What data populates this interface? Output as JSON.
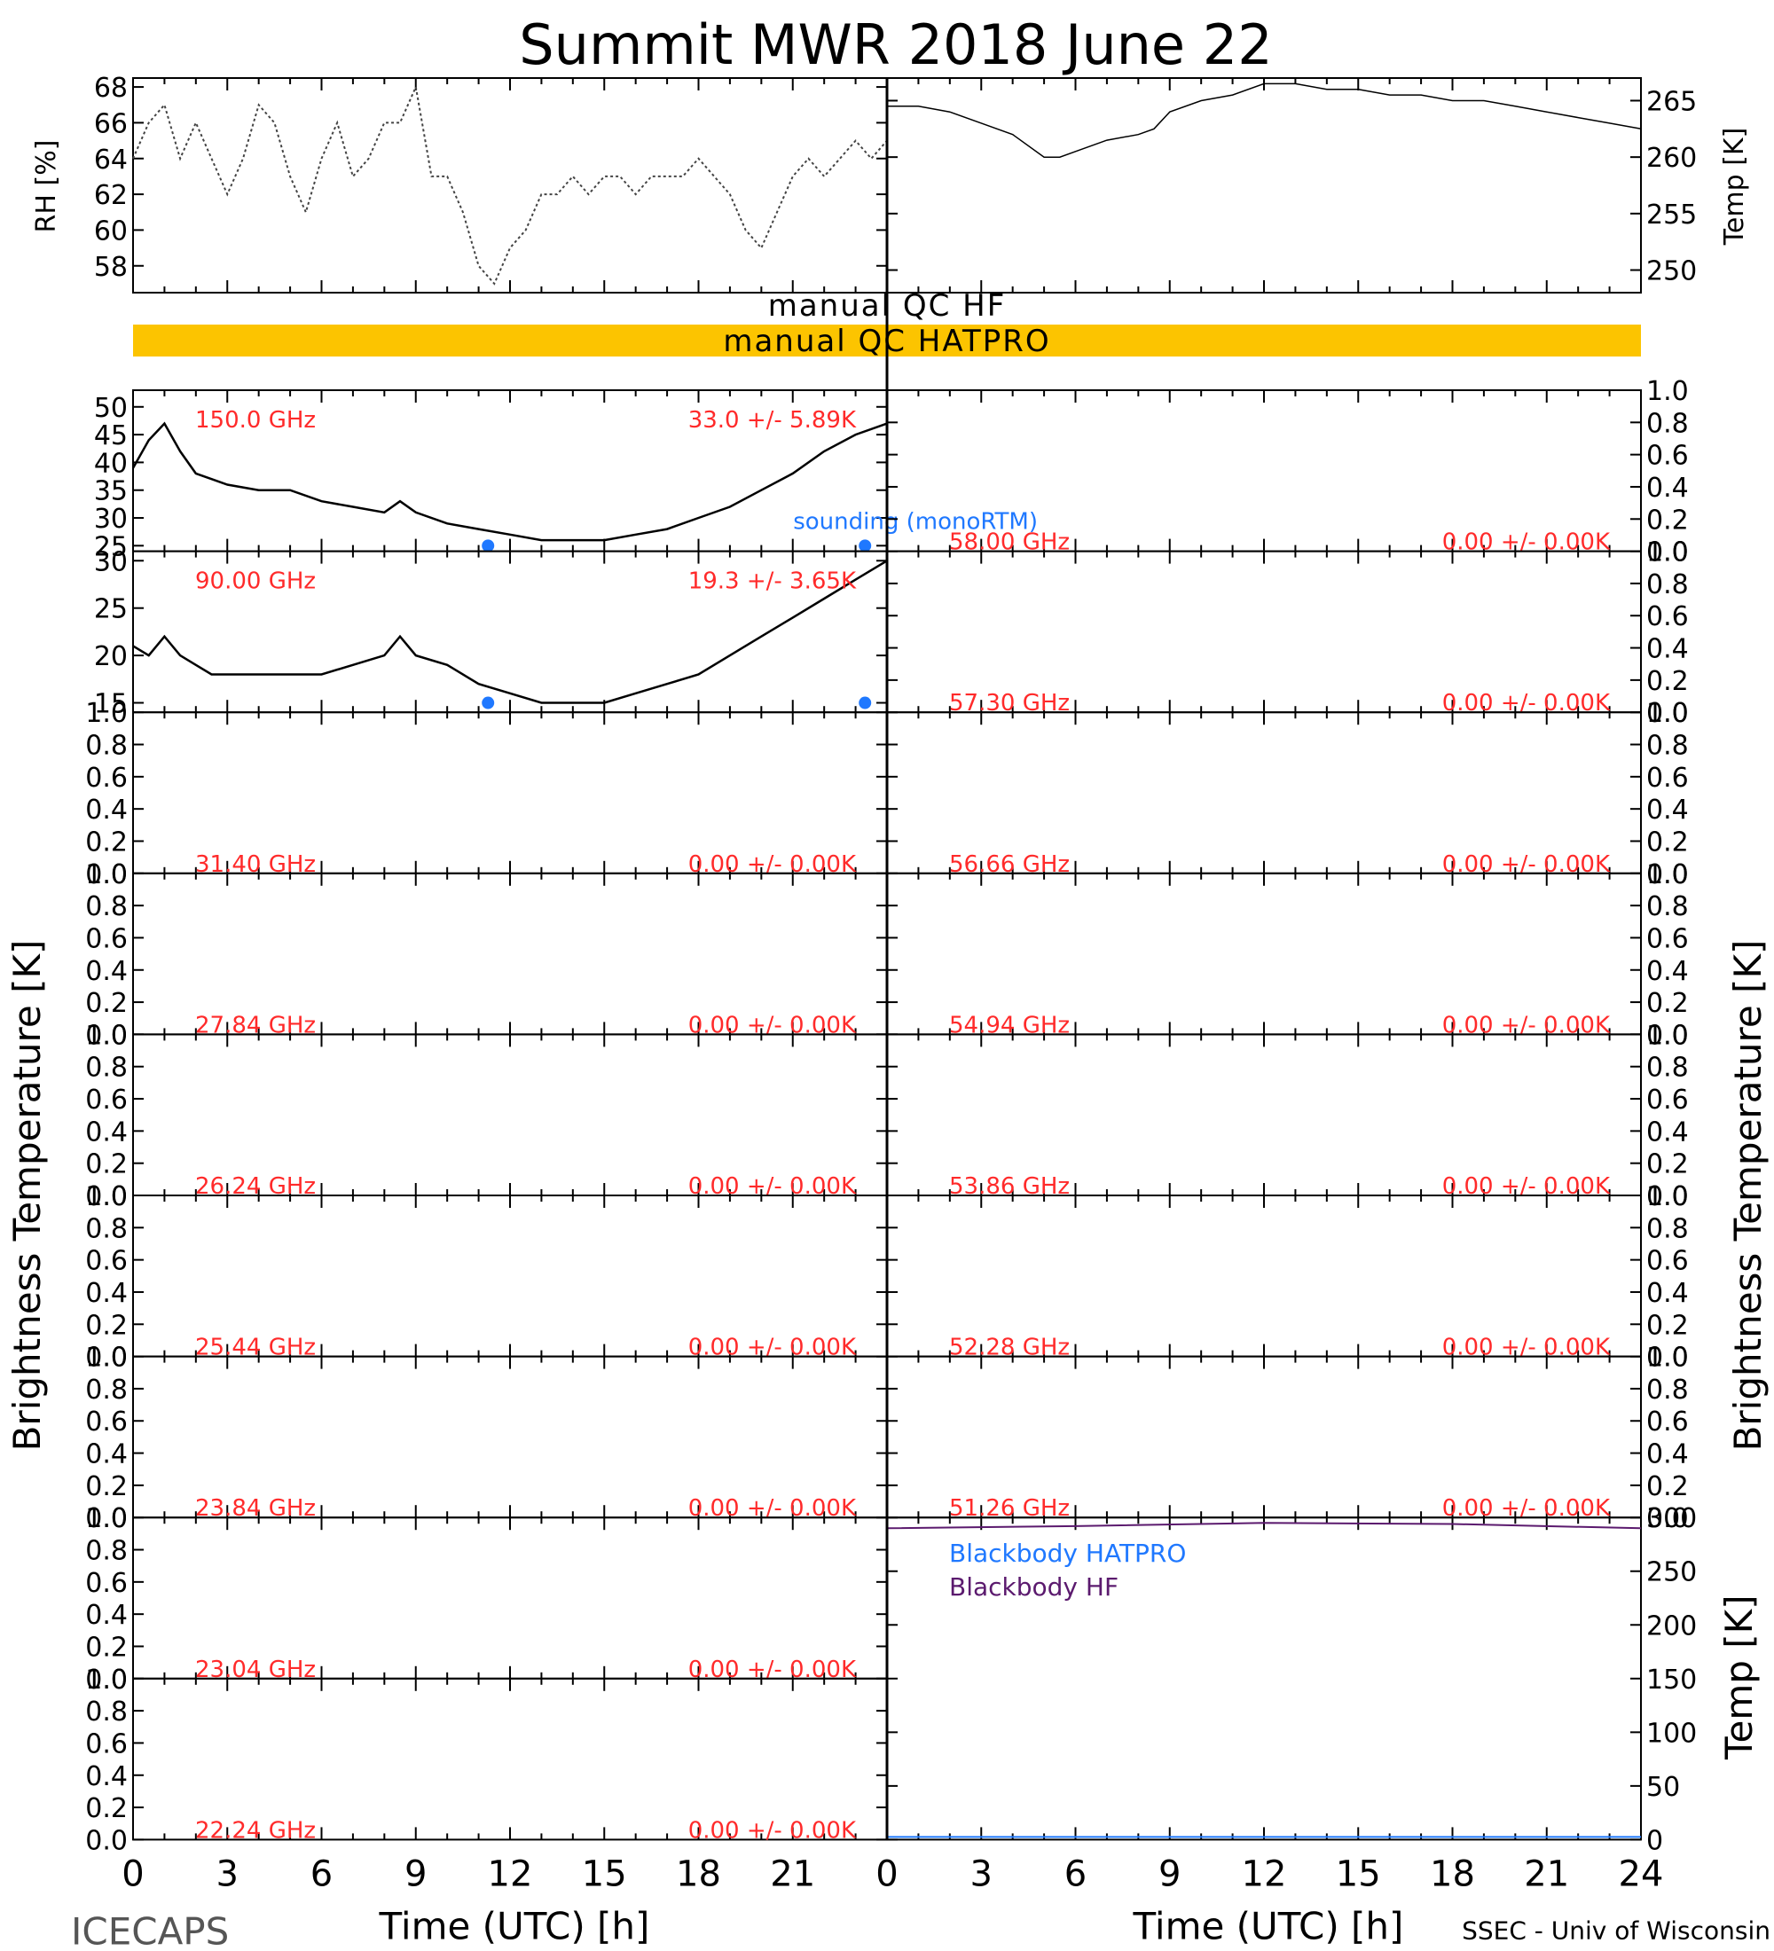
{
  "title": "Summit MWR 2018 June 22",
  "footer": {
    "left": "ICECAPS",
    "right": "SSEC - Univ of Wisconsin"
  },
  "axis_labels": {
    "rh": "RH [%]",
    "temp_top": "Temp [K]",
    "brightness_left": "Brightness Temperature [K]",
    "brightness_right": "Brightness Temperature [K]",
    "temp_bb": "Temp [K]",
    "time": "Time (UTC) [h]"
  },
  "qc": {
    "hf": "manual QC HF",
    "hatpro": "manual QC HATPRO",
    "hatpro_color": "#fcc400"
  },
  "colors": {
    "label": "#ff2a2a",
    "sounding": "#1f78ff",
    "bb_hatpro": "#1f78ff",
    "bb_hf": "#5b1a6e",
    "trace": "#000000"
  },
  "chart_data": [
    {
      "type": "scatter",
      "ylabel": "RH [%]",
      "xlim": [
        0,
        24
      ],
      "xticks": [
        "0",
        "3",
        "6",
        "9",
        "12",
        "15",
        "18",
        "21"
      ],
      "ylim": [
        56.5,
        68.5
      ],
      "yticks": [
        "58",
        "60",
        "62",
        "64",
        "66",
        "68"
      ],
      "x": [
        0,
        0.5,
        1,
        1.5,
        2,
        2.5,
        3,
        3.5,
        4,
        4.5,
        5,
        5.5,
        6,
        6.5,
        7,
        7.5,
        8,
        8.5,
        9,
        9.5,
        10,
        10.5,
        11,
        11.5,
        12,
        12.5,
        13,
        13.5,
        14,
        14.5,
        15,
        15.5,
        16,
        16.5,
        17,
        17.5,
        18,
        18.5,
        19,
        19.5,
        20,
        20.5,
        21,
        21.5,
        22,
        22.5,
        23,
        23.5,
        24
      ],
      "values": [
        64,
        66,
        67,
        64,
        66,
        64,
        62,
        64,
        67,
        66,
        63,
        61,
        64,
        66,
        63,
        64,
        66,
        66,
        68,
        63,
        63,
        61,
        58,
        57,
        59,
        60,
        62,
        62,
        63,
        62,
        63,
        63,
        62,
        63,
        63,
        63,
        64,
        63,
        62,
        60,
        59,
        61,
        63,
        64,
        63,
        64,
        65,
        64,
        65
      ]
    },
    {
      "type": "line",
      "ylabel": "Temp [K]",
      "xlim": [
        0,
        24
      ],
      "ylim": [
        248,
        267
      ],
      "yticks": [
        "250",
        "255",
        "260",
        "265"
      ],
      "x": [
        0,
        1,
        2,
        3,
        4,
        5,
        5.5,
        6,
        7,
        8,
        8.5,
        9,
        10,
        11,
        12,
        13,
        14,
        15,
        16,
        17,
        18,
        19,
        20,
        21,
        22,
        23,
        24
      ],
      "values": [
        264.5,
        264.5,
        264,
        263,
        262,
        260,
        260,
        260.5,
        261.5,
        262,
        262.5,
        264,
        265,
        265.5,
        266.5,
        266.5,
        266,
        266,
        265.5,
        265.5,
        265,
        265,
        264.5,
        264,
        263.5,
        263,
        262.5
      ]
    },
    {
      "type": "line",
      "label": "150.0 GHz",
      "stats": "33.0 +/-   5.89K",
      "sounding_label": "sounding (monoRTM)",
      "ylim": [
        24,
        53
      ],
      "yticks": [
        "25",
        "30",
        "35",
        "40",
        "45",
        "50"
      ],
      "x": [
        0,
        0.5,
        1,
        1.5,
        2,
        2.5,
        3,
        4,
        5,
        6,
        7,
        8,
        8.5,
        9,
        10,
        11,
        12,
        13,
        14,
        15,
        16,
        17,
        18,
        19,
        20,
        21,
        22,
        23,
        24
      ],
      "values": [
        39,
        44,
        47,
        42,
        38,
        37,
        36,
        35,
        35,
        33,
        32,
        31,
        33,
        31,
        29,
        28,
        27,
        26,
        26,
        26,
        27,
        28,
        30,
        32,
        35,
        38,
        42,
        45,
        47
      ],
      "sounding": [
        {
          "x": 11.3,
          "y": 25
        },
        {
          "x": 23.3,
          "y": 25
        }
      ]
    },
    {
      "type": "line",
      "label": "90.00 GHz",
      "stats": "19.3 +/-   3.65K",
      "ylim": [
        14,
        31
      ],
      "yticks": [
        "15",
        "20",
        "25",
        "30"
      ],
      "x": [
        0,
        0.5,
        1,
        1.5,
        2,
        2.5,
        3,
        4,
        5,
        6,
        7,
        8,
        8.5,
        9,
        10,
        11,
        12,
        13,
        14,
        15,
        16,
        17,
        18,
        19,
        20,
        21,
        22,
        23,
        24
      ],
      "values": [
        21,
        20,
        22,
        20,
        19,
        18,
        18,
        18,
        18,
        18,
        19,
        20,
        22,
        20,
        19,
        17,
        16,
        15,
        15,
        15,
        16,
        17,
        18,
        20,
        22,
        24,
        26,
        28,
        30
      ],
      "sounding": [
        {
          "x": 11.3,
          "y": 15
        },
        {
          "x": 23.3,
          "y": 15
        }
      ]
    },
    {
      "type": "line",
      "series": [
        {
          "name": "Blackbody HATPRO",
          "x": [
            0,
            24
          ],
          "values": [
            -1,
            -1
          ]
        },
        {
          "name": "Blackbody HF",
          "x": [
            0,
            6,
            12,
            18,
            24
          ],
          "values": [
            290,
            292,
            295,
            294,
            290
          ]
        }
      ],
      "ylim": [
        0,
        300
      ],
      "yticks": [
        "0",
        "50",
        "100",
        "150",
        "200",
        "250",
        "300"
      ]
    }
  ],
  "empty_panels": {
    "yticks": [
      "0.0",
      "0.2",
      "0.4",
      "0.6",
      "0.8",
      "1.0"
    ],
    "left": [
      {
        "label": "31.40 GHz",
        "stats": "0.00 +/-  0.00K"
      },
      {
        "label": "27.84 GHz",
        "stats": "0.00 +/-  0.00K"
      },
      {
        "label": "26.24 GHz",
        "stats": "0.00 +/-  0.00K"
      },
      {
        "label": "25.44 GHz",
        "stats": "0.00 +/-  0.00K"
      },
      {
        "label": "23.84 GHz",
        "stats": "0.00 +/-  0.00K"
      },
      {
        "label": "23.04 GHz",
        "stats": "0.00 +/-  0.00K"
      },
      {
        "label": "22.24 GHz",
        "stats": "0.00 +/-  0.00K"
      }
    ],
    "right": [
      {
        "label": "58.00 GHz",
        "stats": "0.00 +/-  0.00K"
      },
      {
        "label": "57.30 GHz",
        "stats": "0.00 +/-  0.00K"
      },
      {
        "label": "56.66 GHz",
        "stats": "0.00 +/-  0.00K"
      },
      {
        "label": "54.94 GHz",
        "stats": "0.00 +/-  0.00K"
      },
      {
        "label": "53.86 GHz",
        "stats": "0.00 +/-  0.00K"
      },
      {
        "label": "52.28 GHz",
        "stats": "0.00 +/-  0.00K"
      },
      {
        "label": "51.26 GHz",
        "stats": "0.00 +/-  0.00K"
      }
    ]
  },
  "time_ticks_left": [
    "0",
    "3",
    "6",
    "9",
    "12",
    "15",
    "18",
    "21"
  ],
  "time_ticks_right": [
    "0",
    "3",
    "6",
    "9",
    "12",
    "15",
    "18",
    "21",
    "24"
  ]
}
